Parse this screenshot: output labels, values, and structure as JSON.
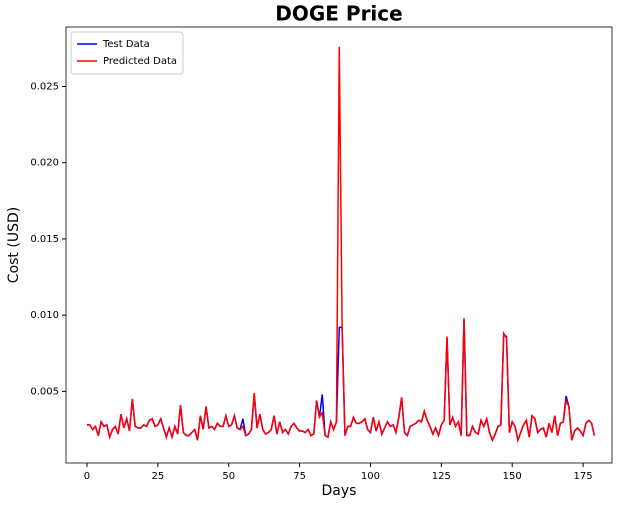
{
  "chart_data": {
    "type": "line",
    "title": "DOGE Price",
    "x_label": "Days",
    "y_label": "Cost (USD)",
    "x": [
      0,
      1,
      2,
      3,
      4,
      5,
      6,
      7,
      8,
      9,
      10,
      11,
      12,
      13,
      14,
      15,
      16,
      17,
      18,
      19,
      20,
      21,
      22,
      23,
      24,
      25,
      26,
      27,
      28,
      29,
      30,
      31,
      32,
      33,
      34,
      35,
      36,
      37,
      38,
      39,
      40,
      41,
      42,
      43,
      44,
      45,
      46,
      47,
      48,
      49,
      50,
      51,
      52,
      53,
      54,
      55,
      56,
      57,
      58,
      59,
      60,
      61,
      62,
      63,
      64,
      65,
      66,
      67,
      68,
      69,
      70,
      71,
      72,
      73,
      74,
      75,
      76,
      77,
      78,
      79,
      80,
      81,
      82,
      83,
      84,
      85,
      86,
      87,
      88,
      89,
      90,
      91,
      92,
      93,
      94,
      95,
      96,
      97,
      98,
      99,
      100,
      101,
      102,
      103,
      104,
      105,
      106,
      107,
      108,
      109,
      110,
      111,
      112,
      113,
      114,
      115,
      116,
      117,
      118,
      119,
      120,
      121,
      122,
      123,
      124,
      125,
      126,
      127,
      128,
      129,
      130,
      131,
      132,
      133,
      134,
      135,
      136,
      137,
      138,
      139,
      140,
      141,
      142,
      143,
      144,
      145,
      146,
      147,
      148,
      149,
      150,
      151,
      152,
      153,
      154,
      155,
      156,
      157,
      158,
      159,
      160,
      161,
      162,
      163,
      164,
      165,
      166,
      167,
      168,
      169,
      170,
      171,
      172,
      173,
      174,
      175,
      176,
      177,
      178,
      179
    ],
    "series": [
      {
        "name": "Test Data",
        "color": "#0000ff",
        "values": [
          0.0028,
          0.0028,
          0.0025,
          0.0027,
          0.0021,
          0.003,
          0.0027,
          0.0028,
          0.002,
          0.0025,
          0.0027,
          0.0022,
          0.0035,
          0.0026,
          0.0032,
          0.0024,
          0.0045,
          0.0027,
          0.0026,
          0.0026,
          0.0028,
          0.0027,
          0.0031,
          0.0032,
          0.0027,
          0.0028,
          0.0032,
          0.0026,
          0.002,
          0.0026,
          0.002,
          0.0027,
          0.0022,
          0.0041,
          0.0023,
          0.0021,
          0.0021,
          0.0023,
          0.0025,
          0.0018,
          0.0034,
          0.0025,
          0.004,
          0.0026,
          0.0027,
          0.0025,
          0.0029,
          0.0027,
          0.0027,
          0.0034,
          0.0027,
          0.0028,
          0.0034,
          0.0026,
          0.0025,
          0.0032,
          0.0021,
          0.0022,
          0.0025,
          0.0047,
          0.0026,
          0.0035,
          0.0025,
          0.0022,
          0.0023,
          0.0025,
          0.0034,
          0.0022,
          0.003,
          0.0023,
          0.0025,
          0.0022,
          0.0027,
          0.0029,
          0.0026,
          0.0024,
          0.0024,
          0.0023,
          0.0025,
          0.0021,
          0.0022,
          0.0044,
          0.0033,
          0.0048,
          0.0021,
          0.002,
          0.003,
          0.0025,
          0.003,
          0.0092,
          0.0092,
          0.0021,
          0.0027,
          0.0027,
          0.0033,
          0.0029,
          0.0029,
          0.003,
          0.0032,
          0.0025,
          0.0023,
          0.0033,
          0.0024,
          0.003,
          0.0022,
          0.0026,
          0.003,
          0.0027,
          0.0028,
          0.0023,
          0.0033,
          0.0046,
          0.0023,
          0.0021,
          0.0027,
          0.0028,
          0.0029,
          0.0031,
          0.003,
          0.0037,
          0.0031,
          0.0027,
          0.0022,
          0.0026,
          0.0021,
          0.0028,
          0.0031,
          0.0085,
          0.0028,
          0.0033,
          0.0027,
          0.003,
          0.0021,
          0.0097,
          0.0021,
          0.0021,
          0.0027,
          0.0023,
          0.0022,
          0.0031,
          0.0027,
          0.0032,
          0.0023,
          0.0018,
          0.0022,
          0.0027,
          0.0028,
          0.0087,
          0.0086,
          0.0023,
          0.003,
          0.0027,
          0.0018,
          0.0023,
          0.0028,
          0.0031,
          0.002,
          0.0034,
          0.0032,
          0.0023,
          0.0025,
          0.0026,
          0.002,
          0.0029,
          0.0023,
          0.0034,
          0.0021,
          0.0029,
          0.003,
          0.0047,
          0.004,
          0.0018,
          0.0024,
          0.0026,
          0.0024,
          0.0021,
          0.0029,
          0.0031,
          0.0029,
          0.0021
        ]
      },
      {
        "name": "Predicted Data",
        "color": "#ff0000",
        "values": [
          0.0028,
          0.0028,
          0.0025,
          0.0027,
          0.0021,
          0.003,
          0.0027,
          0.0028,
          0.002,
          0.0025,
          0.0027,
          0.0022,
          0.0035,
          0.0026,
          0.0032,
          0.0024,
          0.0045,
          0.0027,
          0.0026,
          0.0026,
          0.0028,
          0.0027,
          0.0031,
          0.0032,
          0.0027,
          0.0028,
          0.0032,
          0.0026,
          0.002,
          0.0026,
          0.002,
          0.0027,
          0.0022,
          0.0041,
          0.0023,
          0.0021,
          0.0021,
          0.0023,
          0.0025,
          0.0018,
          0.0034,
          0.0025,
          0.004,
          0.0026,
          0.0027,
          0.0025,
          0.0029,
          0.0027,
          0.0027,
          0.0034,
          0.0027,
          0.0028,
          0.0034,
          0.0026,
          0.0025,
          0.0027,
          0.0021,
          0.0022,
          0.0025,
          0.0049,
          0.0026,
          0.0035,
          0.0025,
          0.0022,
          0.0023,
          0.0025,
          0.0034,
          0.0022,
          0.003,
          0.0023,
          0.0025,
          0.0022,
          0.0027,
          0.0029,
          0.0026,
          0.0024,
          0.0024,
          0.0023,
          0.0025,
          0.0021,
          0.0022,
          0.0044,
          0.0033,
          0.0036,
          0.0021,
          0.002,
          0.003,
          0.0025,
          0.003,
          0.0276,
          0.0091,
          0.0021,
          0.0027,
          0.0027,
          0.0033,
          0.0029,
          0.0029,
          0.003,
          0.0032,
          0.0025,
          0.0023,
          0.0033,
          0.0024,
          0.003,
          0.0022,
          0.0026,
          0.003,
          0.0027,
          0.0028,
          0.0023,
          0.0033,
          0.0046,
          0.0023,
          0.0021,
          0.0027,
          0.0028,
          0.0029,
          0.0031,
          0.003,
          0.0037,
          0.0031,
          0.0027,
          0.0022,
          0.0026,
          0.0021,
          0.0028,
          0.0031,
          0.0086,
          0.0028,
          0.0033,
          0.0027,
          0.003,
          0.0021,
          0.0098,
          0.0021,
          0.0021,
          0.0027,
          0.0023,
          0.0022,
          0.0031,
          0.0027,
          0.0032,
          0.0023,
          0.0018,
          0.0022,
          0.0027,
          0.0028,
          0.0088,
          0.0085,
          0.0023,
          0.003,
          0.0027,
          0.0018,
          0.0023,
          0.0028,
          0.0031,
          0.002,
          0.0034,
          0.0032,
          0.0023,
          0.0025,
          0.0026,
          0.002,
          0.0029,
          0.0023,
          0.0034,
          0.0021,
          0.0029,
          0.003,
          0.0044,
          0.004,
          0.0018,
          0.0024,
          0.0026,
          0.0024,
          0.0021,
          0.0029,
          0.0031,
          0.0029,
          0.0021
        ]
      }
    ],
    "xlim": [
      -7.4,
      185.2
    ],
    "xticks": [
      0,
      25,
      50,
      75,
      100,
      125,
      150,
      175
    ],
    "ylim": [
      0.0003,
      0.0289
    ],
    "yticks": [
      0.005,
      {
        "value": 0.01,
        "label": "0.010"
      },
      0.015,
      {
        "value": 0.02,
        "label": "0.020"
      },
      0.025
    ],
    "legend": "upper left"
  }
}
